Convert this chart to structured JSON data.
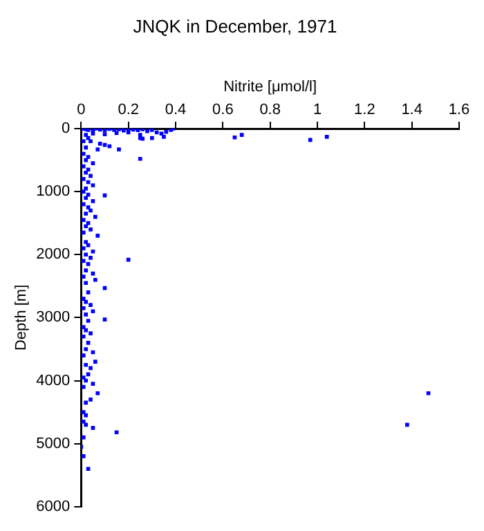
{
  "chart_data": {
    "type": "scatter",
    "title": "JNQK in December, 1971",
    "xlabel": "Nitrite [μmol/l]",
    "ylabel": "Depth [m]",
    "xlim": [
      0,
      1.6
    ],
    "xticks": [
      0,
      0.2,
      0.4,
      0.6,
      0.8,
      1,
      1.2,
      1.4,
      1.6
    ],
    "ylim": [
      6000,
      0
    ],
    "yticks": [
      0,
      1000,
      2000,
      3000,
      4000,
      5000,
      6000
    ],
    "grid": false,
    "legend": false,
    "marker": "square",
    "series": [
      {
        "color": "#0000ff",
        "x": [
          0.01,
          0.02,
          0.03,
          0.05,
          0.06,
          0.08,
          0.1,
          0.12,
          0.14,
          0.16,
          0.18,
          0.2,
          0.22,
          0.24,
          0.26,
          0.28,
          0.3,
          0.32,
          0.34,
          0.36,
          0.38,
          0.39,
          0.05,
          0.1,
          0.15,
          0.2,
          0.25,
          0.3,
          0.35,
          0.25,
          0.26,
          0.02,
          0.03,
          0.04,
          0.08,
          0.1,
          0.12,
          0.07,
          0.16,
          0.25,
          0.65,
          0.68,
          0.97,
          1.04,
          0.01,
          0.02,
          0.01,
          0.03,
          0.02,
          0.05,
          0.01,
          0.03,
          0.02,
          0.04,
          0.01,
          0.03,
          0.05,
          0.02,
          0.01,
          0.03,
          0.1,
          0.02,
          0.05,
          0.01,
          0.03,
          0.04,
          0.02,
          0.06,
          0.01,
          0.03,
          0.02,
          0.07,
          0.04,
          0.01,
          0.02,
          0.03,
          0.01,
          0.05,
          0.02,
          0.04,
          0.2,
          0.01,
          0.03,
          0.02,
          0.05,
          0.01,
          0.06,
          0.02,
          0.1,
          0.03,
          0.01,
          0.02,
          0.04,
          0.01,
          0.05,
          0.02,
          0.1,
          0.03,
          0.01,
          0.02,
          0.04,
          0.01,
          0.03,
          0.02,
          0.05,
          0.01,
          0.06,
          0.02,
          0.04,
          0.03,
          0.01,
          0.02,
          0.05,
          0.01,
          0.07,
          0.04,
          0.02,
          0.01,
          0.02,
          0.01,
          0.02,
          0.05,
          0.01,
          0.0,
          0.01,
          0.03,
          0.15,
          1.47,
          1.38
        ],
        "values": [
          0,
          10,
          20,
          30,
          0,
          15,
          25,
          5,
          20,
          10,
          30,
          5,
          15,
          25,
          10,
          40,
          20,
          60,
          80,
          50,
          20,
          0,
          80,
          90,
          70,
          60,
          100,
          150,
          130,
          150,
          160,
          100,
          150,
          200,
          240,
          260,
          280,
          330,
          330,
          480,
          140,
          100,
          180,
          130,
          200,
          300,
          400,
          450,
          500,
          550,
          600,
          650,
          700,
          750,
          800,
          850,
          900,
          950,
          1000,
          1050,
          1060,
          1100,
          1150,
          1200,
          1250,
          1300,
          1350,
          1400,
          1450,
          1500,
          1550,
          1700,
          1600,
          1650,
          1800,
          1850,
          1900,
          1950,
          2000,
          2050,
          2080,
          2100,
          2150,
          2250,
          2300,
          2350,
          2400,
          2450,
          2530,
          2600,
          2700,
          2750,
          2800,
          2850,
          2900,
          2950,
          3030,
          3050,
          3150,
          3200,
          3250,
          3300,
          3400,
          3500,
          3550,
          3600,
          3700,
          3750,
          3800,
          3900,
          3950,
          4000,
          4050,
          4100,
          4200,
          4300,
          4350,
          4500,
          4550,
          4650,
          4700,
          4750,
          4900,
          5050,
          5200,
          5400,
          4820,
          4200,
          4700
        ]
      }
    ]
  }
}
